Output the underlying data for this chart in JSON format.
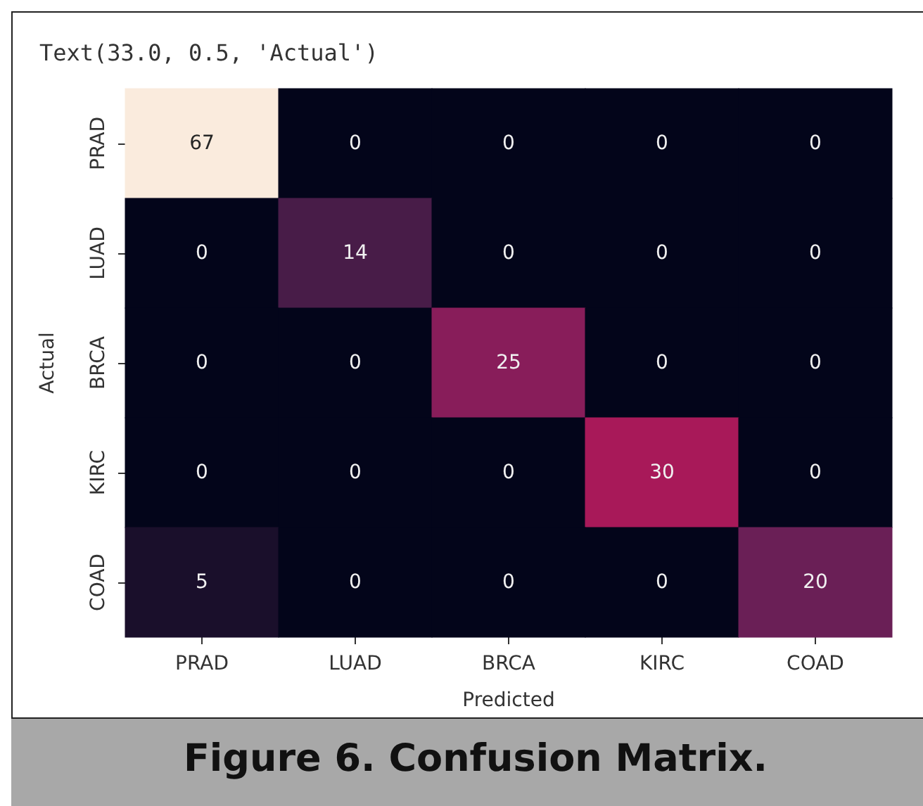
{
  "chart_data": {
    "type": "heatmap",
    "xlabel": "Predicted",
    "ylabel": "Actual",
    "annotations": [
      "Text(33.0, 0.5, 'Actual')",
      "Figure 6. Confusion Matrix."
    ],
    "categories": [
      "PRAD",
      "LUAD",
      "BRCA",
      "KIRC",
      "COAD"
    ],
    "y_categories": [
      "PRAD",
      "LUAD",
      "BRCA",
      "KIRC",
      "COAD"
    ],
    "cells": [
      [
        67,
        0,
        0,
        0,
        0
      ],
      [
        0,
        14,
        0,
        0,
        0
      ],
      [
        0,
        0,
        25,
        0,
        0
      ],
      [
        0,
        0,
        0,
        30,
        0
      ],
      [
        5,
        0,
        0,
        0,
        20
      ]
    ],
    "data_labels": true
  }
}
